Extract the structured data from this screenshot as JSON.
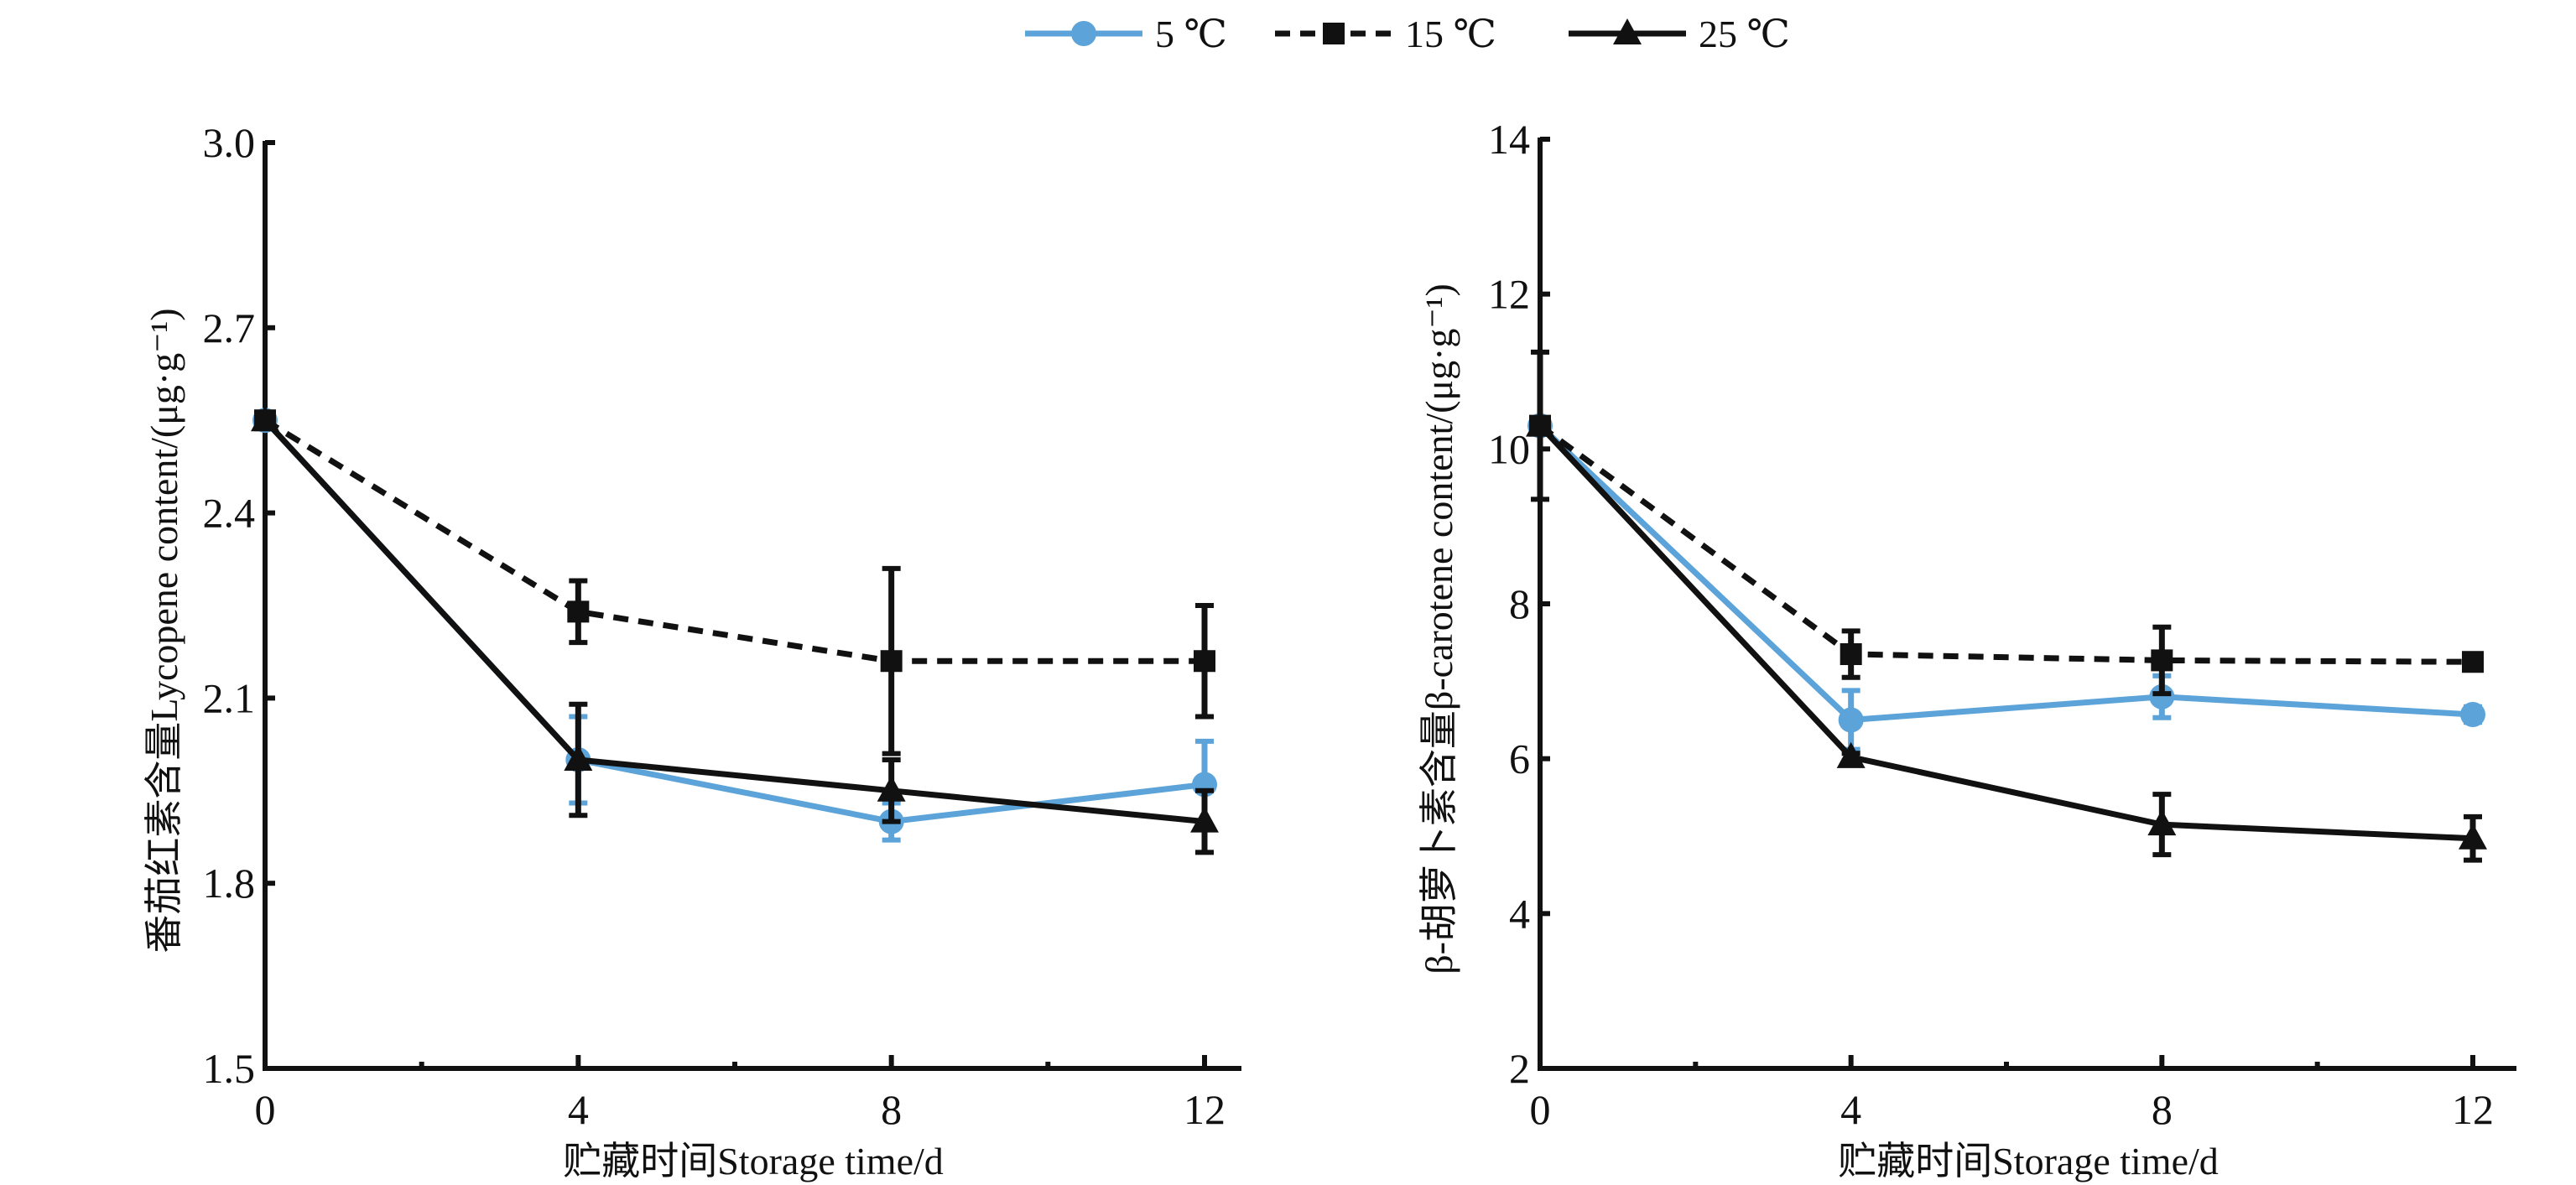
{
  "legend": {
    "placement": "top-center",
    "items": [
      {
        "label": "5 ℃",
        "color": "#5ba3d9",
        "marker": "circle",
        "dash": "solid"
      },
      {
        "label": "15 ℃",
        "color": "#111111",
        "marker": "square",
        "dash": "dashed"
      },
      {
        "label": "25 ℃",
        "color": "#111111",
        "marker": "triangle",
        "dash": "solid"
      }
    ]
  },
  "chart_data": [
    {
      "type": "line",
      "xlabel": "贮藏时间Storage time/d",
      "ylabel": "番茄红素含量Lycopene content/(μg·g⁻¹)",
      "x": [
        0,
        4,
        8,
        12
      ],
      "xticks": [
        "0",
        "4",
        "8",
        "12"
      ],
      "xlim": [
        0,
        12
      ],
      "ylim": [
        1.5,
        3.0
      ],
      "yticks": [
        "1.5",
        "1.8",
        "2.1",
        "2.4",
        "2.7",
        "3.0"
      ],
      "grid": false,
      "series": [
        {
          "name": "5 ℃",
          "values": [
            2.55,
            2.0,
            1.9,
            1.96
          ],
          "error": [
            0,
            0.07,
            0.03,
            0.07
          ]
        },
        {
          "name": "15 ℃",
          "values": [
            2.55,
            2.24,
            2.16,
            2.16
          ],
          "error": [
            0,
            0.05,
            0.15,
            0.09
          ]
        },
        {
          "name": "25 ℃",
          "values": [
            2.55,
            2.0,
            1.95,
            1.9
          ],
          "error": [
            0,
            0.09,
            0.05,
            0.05
          ]
        }
      ]
    },
    {
      "type": "line",
      "xlabel": "贮藏时间Storage time/d",
      "ylabel": "β-胡萝卜素含量β-carotene content/(μg·g⁻¹)",
      "x": [
        0,
        4,
        8,
        12
      ],
      "xticks": [
        "0",
        "4",
        "8",
        "12"
      ],
      "xlim": [
        0,
        12
      ],
      "ylim": [
        2,
        14
      ],
      "yticks": [
        "2",
        "4",
        "6",
        "8",
        "10",
        "12",
        "14"
      ],
      "grid": false,
      "series": [
        {
          "name": "5 ℃",
          "values": [
            10.3,
            6.5,
            6.8,
            6.57
          ],
          "error": [
            0.1,
            0.38,
            0.27,
            0.1
          ]
        },
        {
          "name": "15 ℃",
          "values": [
            10.3,
            7.35,
            7.27,
            7.25
          ],
          "error": [
            0.95,
            0.3,
            0.43,
            0.1
          ]
        },
        {
          "name": "25 ℃",
          "values": [
            10.3,
            6.02,
            5.15,
            4.97
          ],
          "error": [
            0.1,
            0.05,
            0.39,
            0.28
          ]
        }
      ]
    }
  ]
}
